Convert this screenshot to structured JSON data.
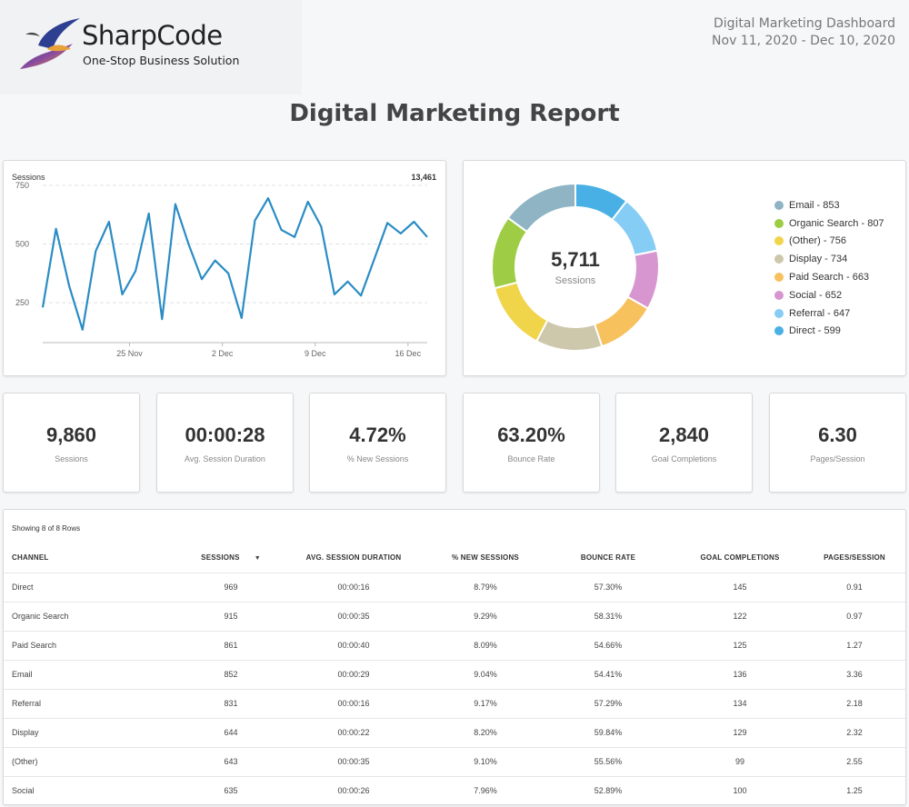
{
  "header": {
    "logo_name": "SharpCode",
    "logo_tagline": "One-Stop Business Solution",
    "dashboard_title": "Digital Marketing Dashboard",
    "date_range": "Nov 11, 2020 - Dec 10, 2020",
    "report_title": "Digital Marketing Report"
  },
  "sessions_chart": {
    "label": "Sessions",
    "total": "13,461"
  },
  "chart_data": [
    {
      "type": "line",
      "title": "Sessions",
      "y_ticks": [
        250,
        500,
        750
      ],
      "x_ticks": [
        "25 Nov",
        "2 Dec",
        "9 Dec",
        "16 Dec"
      ],
      "ylim": [
        80,
        800
      ],
      "grid": true,
      "series": [
        {
          "name": "Sessions",
          "color": "#2b8cc4",
          "values": [
            230,
            565,
            320,
            135,
            470,
            595,
            285,
            385,
            630,
            180,
            670,
            500,
            350,
            430,
            375,
            185,
            600,
            695,
            560,
            530,
            680,
            575,
            285,
            340,
            280,
            435,
            590,
            545,
            595,
            530
          ]
        }
      ]
    },
    {
      "type": "pie",
      "donut": true,
      "center_value": "5,711",
      "center_label": "Sessions",
      "slices": [
        {
          "label": "Email - 853",
          "name": "Email",
          "value": 853,
          "color": "#8fb5c4"
        },
        {
          "label": "Organic Search - 807",
          "name": "Organic Search",
          "value": 807,
          "color": "#9ecd45"
        },
        {
          "label": "(Other) - 756",
          "name": "(Other)",
          "value": 756,
          "color": "#f0d44a"
        },
        {
          "label": "Display - 734",
          "name": "Display",
          "value": 734,
          "color": "#cdc8ac"
        },
        {
          "label": "Paid Search - 663",
          "name": "Paid Search",
          "value": 663,
          "color": "#f7c15e"
        },
        {
          "label": "Social - 652",
          "name": "Social",
          "value": 652,
          "color": "#d796cf"
        },
        {
          "label": "Referral - 647",
          "name": "Referral",
          "value": 647,
          "color": "#86cdf5"
        },
        {
          "label": "Direct - 599",
          "name": "Direct",
          "value": 599,
          "color": "#49b0e5"
        }
      ],
      "legend": "right"
    }
  ],
  "kpis": [
    {
      "value": "9,860",
      "label": "Sessions"
    },
    {
      "value": "00:00:28",
      "label": "Avg. Session Duration"
    },
    {
      "value": "4.72%",
      "label": "% New Sessions"
    },
    {
      "value": "63.20%",
      "label": "Bounce Rate"
    },
    {
      "value": "2,840",
      "label": "Goal Completions"
    },
    {
      "value": "6.30",
      "label": "Pages/Session"
    }
  ],
  "table": {
    "showing": "Showing 8 of 8 Rows",
    "columns": [
      "CHANNEL",
      "SESSIONS",
      "AVG. SESSION DURATION",
      "% NEW SESSIONS",
      "BOUNCE RATE",
      "GOAL COMPLETIONS",
      "PAGES/SESSION"
    ],
    "sort_indicator": "▼",
    "rows": [
      [
        "Direct",
        "969",
        "00:00:16",
        "8.79%",
        "57.30%",
        "145",
        "0.91"
      ],
      [
        "Organic Search",
        "915",
        "00:00:35",
        "9.29%",
        "58.31%",
        "122",
        "0.97"
      ],
      [
        "Paid Search",
        "861",
        "00:00:40",
        "8.09%",
        "54.66%",
        "125",
        "1.27"
      ],
      [
        "Email",
        "852",
        "00:00:29",
        "9.04%",
        "54.41%",
        "136",
        "3.36"
      ],
      [
        "Referral",
        "831",
        "00:00:16",
        "9.17%",
        "57.29%",
        "134",
        "2.18"
      ],
      [
        "Display",
        "644",
        "00:00:22",
        "8.20%",
        "59.84%",
        "129",
        "2.32"
      ],
      [
        "(Other)",
        "643",
        "00:00:35",
        "9.10%",
        "55.56%",
        "99",
        "2.55"
      ],
      [
        "Social",
        "635",
        "00:00:26",
        "7.96%",
        "52.89%",
        "100",
        "1.25"
      ]
    ]
  }
}
